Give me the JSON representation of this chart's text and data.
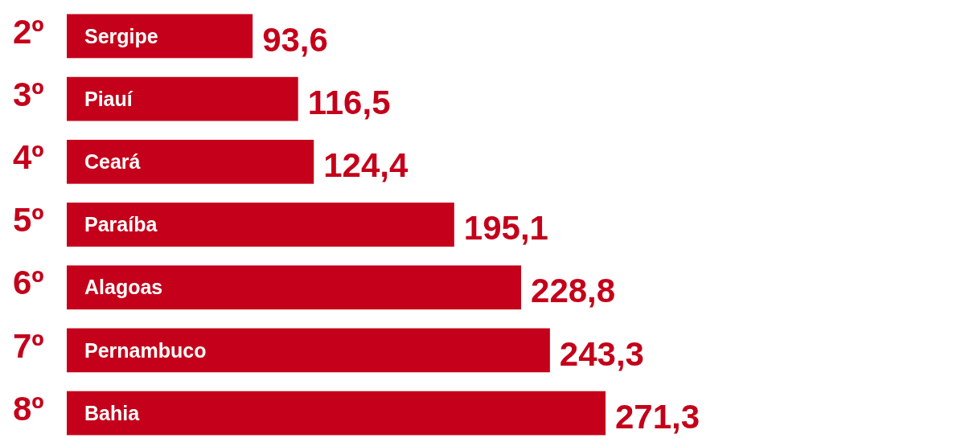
{
  "chart_data": {
    "type": "bar",
    "orientation": "horizontal",
    "categories": [
      "Sergipe",
      "Piauí",
      "Ceará",
      "Paraíba",
      "Alagoas",
      "Pernambuco",
      "Bahia"
    ],
    "values": [
      93.6,
      116.5,
      124.4,
      195.1,
      228.8,
      243.3,
      271.3
    ],
    "value_labels": [
      "93,6",
      "116,5",
      "124,4",
      "195,1",
      "228,8",
      "243,3",
      "271,3"
    ],
    "color": "#c4001a",
    "annotations": [
      "2º",
      "3º",
      "4º",
      "5º",
      "6º",
      "7º",
      "8º"
    ]
  }
}
